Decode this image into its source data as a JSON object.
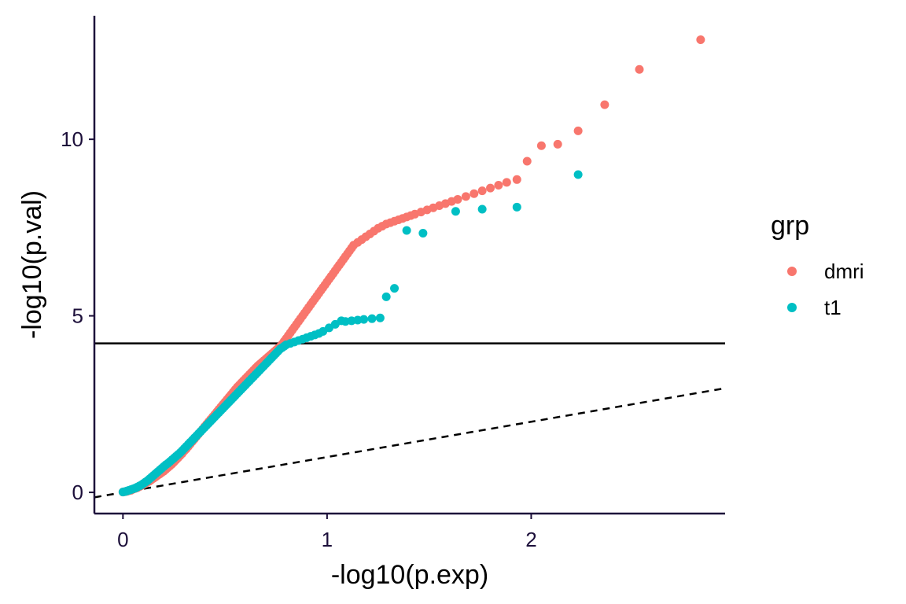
{
  "chart_data": {
    "type": "scatter",
    "title": "",
    "xlabel": "-log10(p.exp)",
    "ylabel": "-log10(p.val)",
    "xlim": [
      -0.14,
      2.95
    ],
    "ylim": [
      -0.6,
      13.5
    ],
    "x_ticks": [
      0,
      1,
      2
    ],
    "x_tick_labels": [
      "0",
      "1",
      "2"
    ],
    "y_ticks": [
      0,
      5,
      10
    ],
    "y_tick_labels": [
      "0",
      "5",
      "10"
    ],
    "grid": false,
    "legend": {
      "title": "grp",
      "position": "right"
    },
    "reference_lines": [
      {
        "kind": "horizontal",
        "style": "solid",
        "y": 4.22,
        "color": "#000000"
      },
      {
        "kind": "diagonal",
        "style": "dashed",
        "slope": 1,
        "intercept": 0,
        "color": "#000000"
      }
    ],
    "series": [
      {
        "name": "dmri",
        "color": "#F8766D",
        "points": [
          [
            0.0,
            0.01
          ],
          [
            0.01,
            0.02
          ],
          [
            0.02,
            0.03
          ],
          [
            0.03,
            0.05
          ],
          [
            0.04,
            0.06
          ],
          [
            0.05,
            0.09
          ],
          [
            0.06,
            0.11
          ],
          [
            0.07,
            0.13
          ],
          [
            0.08,
            0.16
          ],
          [
            0.09,
            0.19
          ],
          [
            0.1,
            0.22
          ],
          [
            0.11,
            0.25
          ],
          [
            0.12,
            0.29
          ],
          [
            0.13,
            0.32
          ],
          [
            0.14,
            0.36
          ],
          [
            0.15,
            0.4
          ],
          [
            0.16,
            0.44
          ],
          [
            0.17,
            0.48
          ],
          [
            0.18,
            0.52
          ],
          [
            0.19,
            0.56
          ],
          [
            0.2,
            0.6
          ],
          [
            0.21,
            0.65
          ],
          [
            0.22,
            0.7
          ],
          [
            0.23,
            0.75
          ],
          [
            0.24,
            0.8
          ],
          [
            0.25,
            0.86
          ],
          [
            0.26,
            0.92
          ],
          [
            0.27,
            0.98
          ],
          [
            0.28,
            1.04
          ],
          [
            0.29,
            1.1
          ],
          [
            0.3,
            1.17
          ],
          [
            0.31,
            1.23
          ],
          [
            0.32,
            1.3
          ],
          [
            0.33,
            1.37
          ],
          [
            0.34,
            1.44
          ],
          [
            0.35,
            1.51
          ],
          [
            0.36,
            1.58
          ],
          [
            0.37,
            1.65
          ],
          [
            0.38,
            1.72
          ],
          [
            0.39,
            1.79
          ],
          [
            0.4,
            1.86
          ],
          [
            0.41,
            1.93
          ],
          [
            0.42,
            2.0
          ],
          [
            0.43,
            2.07
          ],
          [
            0.44,
            2.14
          ],
          [
            0.45,
            2.21
          ],
          [
            0.46,
            2.28
          ],
          [
            0.47,
            2.35
          ],
          [
            0.48,
            2.42
          ],
          [
            0.49,
            2.49
          ],
          [
            0.5,
            2.56
          ],
          [
            0.51,
            2.63
          ],
          [
            0.52,
            2.7
          ],
          [
            0.53,
            2.77
          ],
          [
            0.54,
            2.84
          ],
          [
            0.55,
            2.91
          ],
          [
            0.56,
            2.98
          ],
          [
            0.57,
            3.04
          ],
          [
            0.58,
            3.1
          ],
          [
            0.59,
            3.16
          ],
          [
            0.6,
            3.22
          ],
          [
            0.61,
            3.28
          ],
          [
            0.62,
            3.34
          ],
          [
            0.63,
            3.4
          ],
          [
            0.64,
            3.46
          ],
          [
            0.65,
            3.52
          ],
          [
            0.66,
            3.58
          ],
          [
            0.67,
            3.63
          ],
          [
            0.68,
            3.68
          ],
          [
            0.69,
            3.73
          ],
          [
            0.7,
            3.78
          ],
          [
            0.71,
            3.83
          ],
          [
            0.72,
            3.88
          ],
          [
            0.73,
            3.93
          ],
          [
            0.74,
            3.98
          ],
          [
            0.75,
            4.03
          ],
          [
            0.76,
            4.08
          ],
          [
            0.77,
            4.13
          ],
          [
            0.78,
            4.2
          ],
          [
            0.79,
            4.28
          ],
          [
            0.8,
            4.36
          ],
          [
            0.81,
            4.44
          ],
          [
            0.82,
            4.52
          ],
          [
            0.83,
            4.6
          ],
          [
            0.84,
            4.68
          ],
          [
            0.85,
            4.76
          ],
          [
            0.86,
            4.84
          ],
          [
            0.87,
            4.92
          ],
          [
            0.88,
            5.0
          ],
          [
            0.89,
            5.08
          ],
          [
            0.9,
            5.16
          ],
          [
            0.91,
            5.24
          ],
          [
            0.92,
            5.32
          ],
          [
            0.93,
            5.4
          ],
          [
            0.94,
            5.48
          ],
          [
            0.95,
            5.56
          ],
          [
            0.96,
            5.64
          ],
          [
            0.97,
            5.72
          ],
          [
            0.98,
            5.8
          ],
          [
            0.99,
            5.88
          ],
          [
            1.0,
            5.96
          ],
          [
            1.01,
            6.04
          ],
          [
            1.02,
            6.12
          ],
          [
            1.03,
            6.2
          ],
          [
            1.04,
            6.28
          ],
          [
            1.05,
            6.36
          ],
          [
            1.06,
            6.44
          ],
          [
            1.07,
            6.52
          ],
          [
            1.08,
            6.6
          ],
          [
            1.09,
            6.68
          ],
          [
            1.1,
            6.76
          ],
          [
            1.11,
            6.84
          ],
          [
            1.12,
            6.92
          ],
          [
            1.13,
            7.0
          ],
          [
            1.15,
            7.08
          ],
          [
            1.17,
            7.16
          ],
          [
            1.19,
            7.24
          ],
          [
            1.21,
            7.32
          ],
          [
            1.23,
            7.4
          ],
          [
            1.25,
            7.48
          ],
          [
            1.27,
            7.54
          ],
          [
            1.29,
            7.6
          ],
          [
            1.31,
            7.64
          ],
          [
            1.33,
            7.68
          ],
          [
            1.35,
            7.72
          ],
          [
            1.37,
            7.76
          ],
          [
            1.39,
            7.8
          ],
          [
            1.41,
            7.84
          ],
          [
            1.43,
            7.88
          ],
          [
            1.46,
            7.94
          ],
          [
            1.49,
            8.0
          ],
          [
            1.52,
            8.06
          ],
          [
            1.55,
            8.12
          ],
          [
            1.58,
            8.18
          ],
          [
            1.61,
            8.24
          ],
          [
            1.64,
            8.3
          ],
          [
            1.68,
            8.38
          ],
          [
            1.72,
            8.46
          ],
          [
            1.76,
            8.54
          ],
          [
            1.8,
            8.62
          ],
          [
            1.84,
            8.7
          ],
          [
            1.88,
            8.78
          ],
          [
            1.93,
            8.86
          ],
          [
            1.98,
            9.38
          ],
          [
            2.05,
            9.82
          ],
          [
            2.13,
            9.86
          ],
          [
            2.23,
            10.24
          ],
          [
            2.36,
            10.98
          ],
          [
            2.53,
            11.98
          ],
          [
            2.83,
            12.82
          ]
        ]
      },
      {
        "name": "t1",
        "color": "#00BFC4",
        "points": [
          [
            0.0,
            0.01
          ],
          [
            0.01,
            0.02
          ],
          [
            0.02,
            0.04
          ],
          [
            0.03,
            0.06
          ],
          [
            0.04,
            0.08
          ],
          [
            0.05,
            0.1
          ],
          [
            0.06,
            0.12
          ],
          [
            0.07,
            0.15
          ],
          [
            0.08,
            0.18
          ],
          [
            0.09,
            0.21
          ],
          [
            0.1,
            0.25
          ],
          [
            0.11,
            0.29
          ],
          [
            0.12,
            0.33
          ],
          [
            0.13,
            0.38
          ],
          [
            0.14,
            0.43
          ],
          [
            0.15,
            0.48
          ],
          [
            0.16,
            0.53
          ],
          [
            0.17,
            0.58
          ],
          [
            0.18,
            0.63
          ],
          [
            0.19,
            0.68
          ],
          [
            0.2,
            0.73
          ],
          [
            0.21,
            0.78
          ],
          [
            0.22,
            0.82
          ],
          [
            0.23,
            0.87
          ],
          [
            0.24,
            0.92
          ],
          [
            0.25,
            0.97
          ],
          [
            0.26,
            1.02
          ],
          [
            0.27,
            1.07
          ],
          [
            0.28,
            1.12
          ],
          [
            0.29,
            1.18
          ],
          [
            0.3,
            1.24
          ],
          [
            0.31,
            1.3
          ],
          [
            0.32,
            1.36
          ],
          [
            0.33,
            1.42
          ],
          [
            0.34,
            1.48
          ],
          [
            0.35,
            1.54
          ],
          [
            0.36,
            1.6
          ],
          [
            0.37,
            1.66
          ],
          [
            0.38,
            1.72
          ],
          [
            0.39,
            1.78
          ],
          [
            0.4,
            1.84
          ],
          [
            0.41,
            1.9
          ],
          [
            0.42,
            1.96
          ],
          [
            0.43,
            2.02
          ],
          [
            0.44,
            2.08
          ],
          [
            0.45,
            2.14
          ],
          [
            0.46,
            2.2
          ],
          [
            0.47,
            2.26
          ],
          [
            0.48,
            2.32
          ],
          [
            0.49,
            2.38
          ],
          [
            0.5,
            2.44
          ],
          [
            0.51,
            2.5
          ],
          [
            0.52,
            2.56
          ],
          [
            0.53,
            2.62
          ],
          [
            0.54,
            2.68
          ],
          [
            0.55,
            2.74
          ],
          [
            0.56,
            2.8
          ],
          [
            0.57,
            2.86
          ],
          [
            0.58,
            2.92
          ],
          [
            0.59,
            2.98
          ],
          [
            0.6,
            3.04
          ],
          [
            0.61,
            3.1
          ],
          [
            0.62,
            3.16
          ],
          [
            0.63,
            3.22
          ],
          [
            0.64,
            3.28
          ],
          [
            0.65,
            3.34
          ],
          [
            0.66,
            3.4
          ],
          [
            0.67,
            3.46
          ],
          [
            0.68,
            3.52
          ],
          [
            0.69,
            3.58
          ],
          [
            0.7,
            3.64
          ],
          [
            0.71,
            3.7
          ],
          [
            0.72,
            3.76
          ],
          [
            0.73,
            3.82
          ],
          [
            0.74,
            3.88
          ],
          [
            0.75,
            3.94
          ],
          [
            0.76,
            4.0
          ],
          [
            0.77,
            4.06
          ],
          [
            0.78,
            4.1
          ],
          [
            0.79,
            4.14
          ],
          [
            0.8,
            4.18
          ],
          [
            0.82,
            4.22
          ],
          [
            0.84,
            4.26
          ],
          [
            0.86,
            4.3
          ],
          [
            0.88,
            4.34
          ],
          [
            0.9,
            4.38
          ],
          [
            0.92,
            4.42
          ],
          [
            0.94,
            4.46
          ],
          [
            0.96,
            4.5
          ],
          [
            0.98,
            4.56
          ],
          [
            1.01,
            4.66
          ],
          [
            1.04,
            4.76
          ],
          [
            1.07,
            4.86
          ],
          [
            1.09,
            4.84
          ],
          [
            1.12,
            4.86
          ],
          [
            1.15,
            4.88
          ],
          [
            1.18,
            4.9
          ],
          [
            1.22,
            4.92
          ],
          [
            1.26,
            4.94
          ],
          [
            1.29,
            5.54
          ],
          [
            1.33,
            5.78
          ],
          [
            1.39,
            7.42
          ],
          [
            1.47,
            7.34
          ],
          [
            1.63,
            7.96
          ],
          [
            1.76,
            8.02
          ],
          [
            1.93,
            8.08
          ],
          [
            2.23,
            9.0
          ]
        ]
      }
    ]
  }
}
